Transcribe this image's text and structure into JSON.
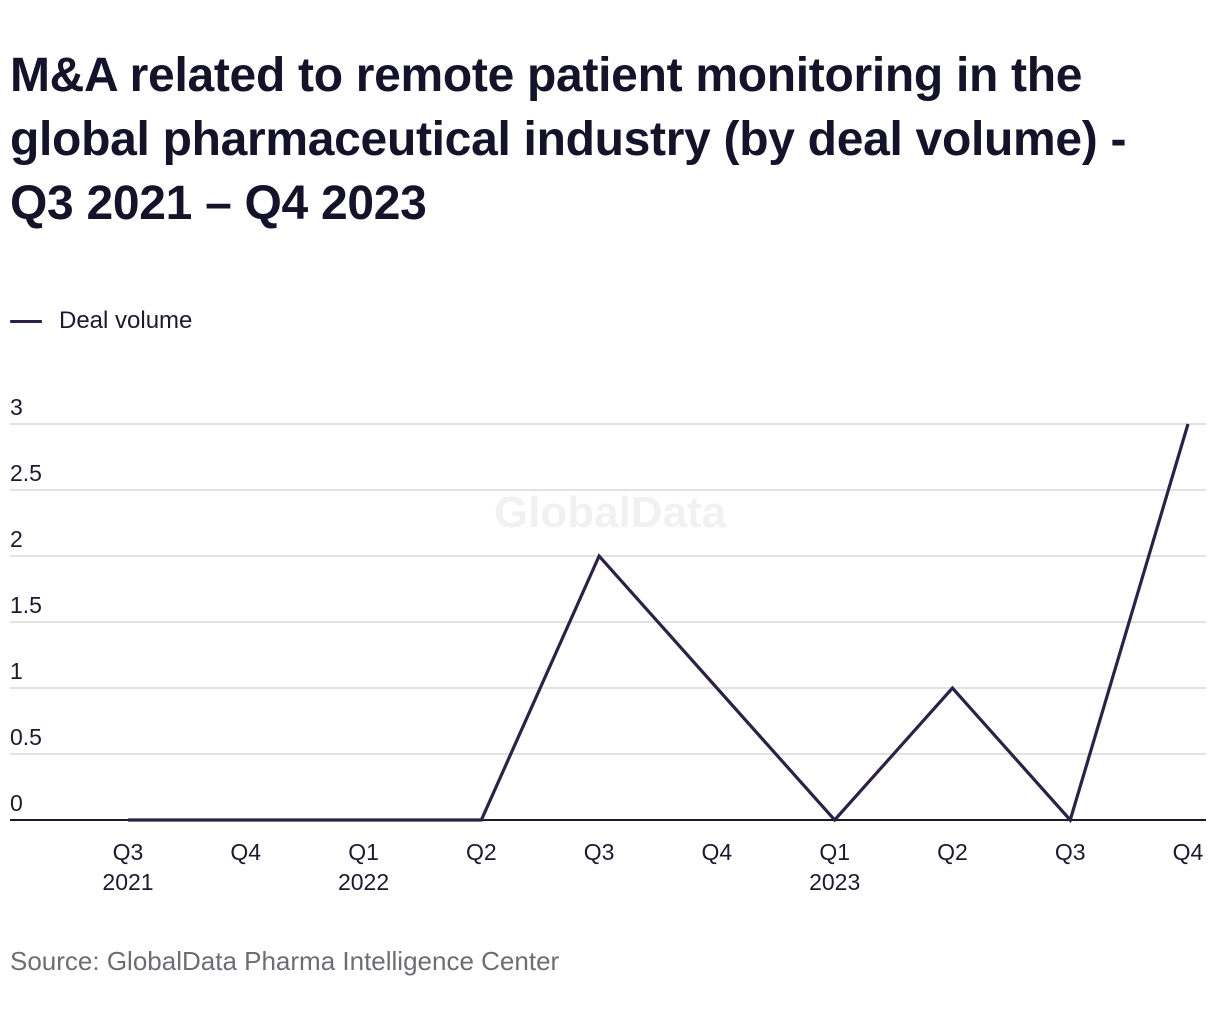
{
  "title": "M&A related to remote patient monitoring in the global pharmaceutical industry (by deal volume) - Q3 2021 – Q4 2023",
  "watermark": "GlobalData",
  "source": "Source: GlobalData Pharma Intelligence Center",
  "colors": {
    "line": "#2d2145",
    "grid": "#d9d9d9",
    "axis": "#1b1a2e",
    "text": "#1b1a2e",
    "watermark": "#f1f1f1"
  },
  "chart_data": {
    "type": "line",
    "title": "M&A related to remote patient monitoring in the global pharmaceutical industry (by deal volume) - Q3 2021 – Q4 2023",
    "xlabel": "",
    "ylabel": "",
    "ylim": [
      0,
      3
    ],
    "yticks": [
      "0",
      "0.5",
      "1",
      "1.5",
      "2",
      "2.5",
      "3"
    ],
    "grid": true,
    "legend_position": "top-left",
    "categories": [
      "Q3 2021",
      "Q4 2021",
      "Q1 2022",
      "Q2 2022",
      "Q3 2022",
      "Q4 2022",
      "Q1 2023",
      "Q2 2023",
      "Q3 2023",
      "Q4 2023"
    ],
    "tick_labels": [
      [
        "Q3",
        "2021"
      ],
      [
        "Q4"
      ],
      [
        "Q1",
        "2022"
      ],
      [
        "Q2"
      ],
      [
        "Q3"
      ],
      [
        "Q4"
      ],
      [
        "Q1",
        "2023"
      ],
      [
        "Q2"
      ],
      [
        "Q3"
      ],
      [
        "Q4"
      ]
    ],
    "series": [
      {
        "name": "Deal volume",
        "values": [
          0,
          0,
          0,
          0,
          2,
          1,
          0,
          1,
          0,
          3
        ]
      }
    ]
  }
}
